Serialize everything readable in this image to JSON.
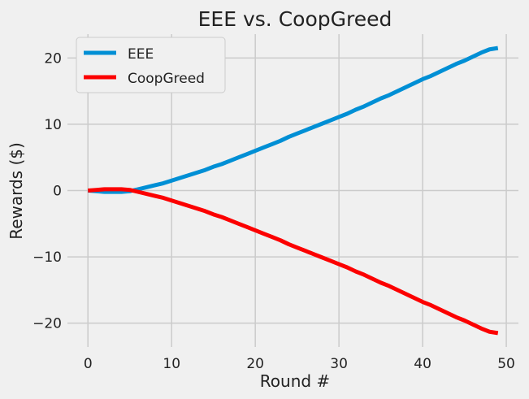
{
  "chart_data": {
    "type": "line",
    "title": "EEE vs. CoopGreed",
    "xlabel": "Round #",
    "ylabel": "Rewards ($)",
    "xlim": [
      -2.45,
      51.45
    ],
    "ylim": [
      -23.6,
      23.6
    ],
    "xticks": [
      0,
      10,
      20,
      30,
      40,
      50
    ],
    "yticks": [
      -20,
      -10,
      0,
      10,
      20
    ],
    "ytick_labels": [
      "−20",
      "−10",
      "0",
      "10",
      "20"
    ],
    "grid": true,
    "legend_position": "top-left",
    "x": [
      0,
      1,
      2,
      3,
      4,
      5,
      6,
      7,
      8,
      9,
      10,
      11,
      12,
      13,
      14,
      15,
      16,
      17,
      18,
      19,
      20,
      21,
      22,
      23,
      24,
      25,
      26,
      27,
      28,
      29,
      30,
      31,
      32,
      33,
      34,
      35,
      36,
      37,
      38,
      39,
      40,
      41,
      42,
      43,
      44,
      45,
      46,
      47,
      48,
      49
    ],
    "series": [
      {
        "name": "EEE",
        "color": "#008fd5",
        "values": [
          0.0,
          -0.1,
          -0.2,
          -0.2,
          -0.2,
          -0.1,
          0.2,
          0.5,
          0.8,
          1.1,
          1.5,
          1.9,
          2.3,
          2.7,
          3.1,
          3.6,
          4.0,
          4.5,
          5.0,
          5.5,
          6.0,
          6.5,
          7.0,
          7.5,
          8.1,
          8.6,
          9.1,
          9.6,
          10.1,
          10.6,
          11.1,
          11.6,
          12.2,
          12.7,
          13.3,
          13.9,
          14.4,
          15.0,
          15.6,
          16.2,
          16.8,
          17.3,
          17.9,
          18.5,
          19.1,
          19.6,
          20.2,
          20.8,
          21.3,
          21.5
        ]
      },
      {
        "name": "CoopGreed",
        "color": "#fc0000",
        "values": [
          0.0,
          0.1,
          0.2,
          0.2,
          0.2,
          0.1,
          -0.2,
          -0.5,
          -0.8,
          -1.1,
          -1.5,
          -1.9,
          -2.3,
          -2.7,
          -3.1,
          -3.6,
          -4.0,
          -4.5,
          -5.0,
          -5.5,
          -6.0,
          -6.5,
          -7.0,
          -7.5,
          -8.1,
          -8.6,
          -9.1,
          -9.6,
          -10.1,
          -10.6,
          -11.1,
          -11.6,
          -12.2,
          -12.7,
          -13.3,
          -13.9,
          -14.4,
          -15.0,
          -15.6,
          -16.2,
          -16.8,
          -17.3,
          -17.9,
          -18.5,
          -19.1,
          -19.6,
          -20.2,
          -20.8,
          -21.3,
          -21.5
        ]
      }
    ]
  }
}
